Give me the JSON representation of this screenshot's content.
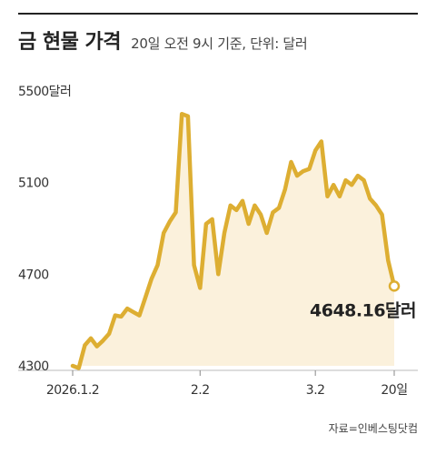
{
  "chart_data": {
    "type": "area",
    "title": "금 현물 가격",
    "subtitle": "20일 오전 9시 기준, 단위: 달러",
    "y_unit_label": "5500달러",
    "yticks": [
      {
        "value": 5500,
        "label": "5500달러"
      },
      {
        "value": 5100,
        "label": "5100"
      },
      {
        "value": 4700,
        "label": "4700"
      },
      {
        "value": 4300,
        "label": "4300"
      }
    ],
    "ylim": [
      4300,
      5500
    ],
    "xticks": [
      {
        "index": 0,
        "label": "2026.1.2"
      },
      {
        "index": 21,
        "label": "2.2"
      },
      {
        "index": 40,
        "label": "3.2"
      },
      {
        "index": 53,
        "label": "20일"
      }
    ],
    "series": [
      {
        "values": [
          4300,
          4290,
          4390,
          4420,
          4385,
          4410,
          4440,
          4520,
          4515,
          4550,
          4535,
          4520,
          4600,
          4680,
          4740,
          4880,
          4930,
          4970,
          5400,
          5390,
          4740,
          4640,
          4920,
          4940,
          4700,
          4880,
          5000,
          4980,
          5020,
          4920,
          5000,
          4960,
          4880,
          4970,
          4990,
          5070,
          5190,
          5130,
          5150,
          5160,
          5240,
          5280,
          5040,
          5090,
          5040,
          5110,
          5090,
          5130,
          5110,
          5030,
          5000,
          4960,
          4760,
          4648.16
        ]
      }
    ],
    "last_value_label": "4648.16달러",
    "colors": {
      "line": "#DDAE32",
      "fill": "#FBF1DC",
      "marker_fill": "#ffffff"
    },
    "grid": false
  },
  "source": "자료=인베스팅닷컴"
}
